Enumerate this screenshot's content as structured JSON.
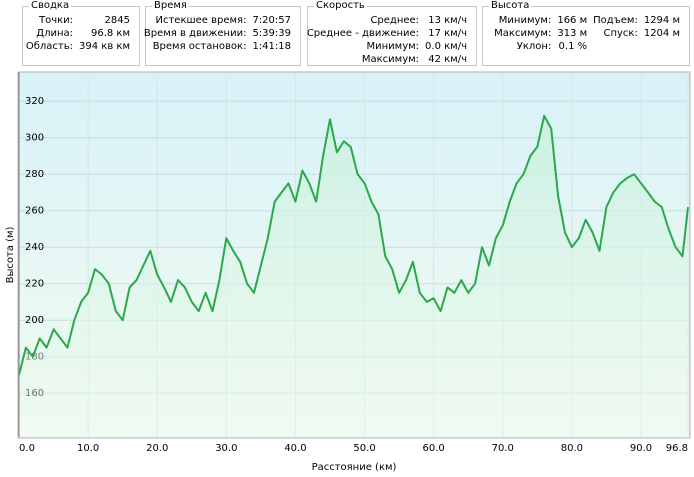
{
  "panels": [
    {
      "title": "Сводка",
      "rows": [
        [
          "Точки:",
          "2845"
        ],
        [
          "Длина:",
          "96.8 км"
        ],
        [
          "Область:",
          "394 кв км"
        ]
      ]
    },
    {
      "title": "Время",
      "rows": [
        [
          "Истекшее время:",
          "7:20:57"
        ],
        [
          "Время в движении:",
          "5:39:39"
        ],
        [
          "Время остановок:",
          "1:41:18"
        ]
      ]
    },
    {
      "title": "Скорость",
      "rows": [
        [
          "Среднее:",
          "13 км/ч"
        ],
        [
          "Среднее - движение:",
          "17 км/ч"
        ],
        [
          "Минимум:",
          "0.0 км/ч"
        ],
        [
          "Максимум:",
          "42 км/ч"
        ]
      ]
    },
    {
      "title": "Высота",
      "rows": [
        [
          "Минимум:",
          "166 м",
          "Подъем:",
          "1294 м"
        ],
        [
          "Максимум:",
          "313 м",
          "Спуск:",
          "1204 м"
        ],
        [
          "Уклон:",
          "0.1 %"
        ]
      ]
    }
  ],
  "chart_data": {
    "type": "area",
    "xlabel": "Расстояние  (км)",
    "ylabel": "Высота (м)",
    "x": [
      0,
      1,
      2,
      3,
      4,
      5,
      6,
      7,
      8,
      9,
      10,
      11,
      12,
      13,
      14,
      15,
      16,
      17,
      18,
      19,
      20,
      21,
      22,
      23,
      24,
      25,
      26,
      27,
      28,
      29,
      30,
      31,
      32,
      33,
      34,
      35,
      36,
      37,
      38,
      39,
      40,
      41,
      42,
      43,
      44,
      45,
      46,
      47,
      48,
      49,
      50,
      51,
      52,
      53,
      54,
      55,
      56,
      57,
      58,
      59,
      60,
      61,
      62,
      63,
      64,
      65,
      66,
      67,
      68,
      69,
      70,
      71,
      72,
      73,
      74,
      75,
      76,
      77,
      78,
      79,
      80,
      81,
      82,
      83,
      84,
      85,
      86,
      87,
      88,
      89,
      90,
      91,
      92,
      93,
      94,
      95,
      96,
      96.8
    ],
    "series": [
      {
        "name": "Высота",
        "color": "#2aa84a",
        "values": [
          170,
          185,
          180,
          190,
          185,
          195,
          190,
          185,
          200,
          210,
          215,
          228,
          225,
          220,
          205,
          200,
          218,
          222,
          230,
          238,
          225,
          218,
          210,
          222,
          218,
          210,
          205,
          215,
          205,
          222,
          245,
          238,
          232,
          220,
          215,
          230,
          245,
          265,
          270,
          275,
          265,
          282,
          275,
          265,
          290,
          310,
          292,
          298,
          295,
          280,
          275,
          265,
          258,
          235,
          228,
          215,
          222,
          232,
          215,
          210,
          212,
          205,
          218,
          215,
          222,
          215,
          220,
          240,
          230,
          245,
          252,
          265,
          275,
          280,
          290,
          295,
          312,
          305,
          268,
          248,
          240,
          245,
          255,
          248,
          238,
          262,
          270,
          275,
          278,
          280,
          275,
          270,
          265,
          262,
          250,
          240,
          235,
          262
        ]
      }
    ],
    "xlim": [
      0,
      96.8
    ],
    "ylim": [
      136,
      336
    ],
    "xticks": [
      {
        "value": 0,
        "label": "0.0"
      },
      {
        "value": 10,
        "label": "10.0"
      },
      {
        "value": 20,
        "label": "20.0"
      },
      {
        "value": 30,
        "label": "30.0"
      },
      {
        "value": 40,
        "label": "40.0"
      },
      {
        "value": 50,
        "label": "50.0"
      },
      {
        "value": 60,
        "label": "60.0"
      },
      {
        "value": 70,
        "label": "70.0"
      },
      {
        "value": 80,
        "label": "80.0"
      },
      {
        "value": 90,
        "label": "90.0"
      },
      96.8
    ],
    "yticks": [
      160,
      180,
      200,
      220,
      240,
      260,
      280,
      300,
      320
    ],
    "grid": true
  }
}
